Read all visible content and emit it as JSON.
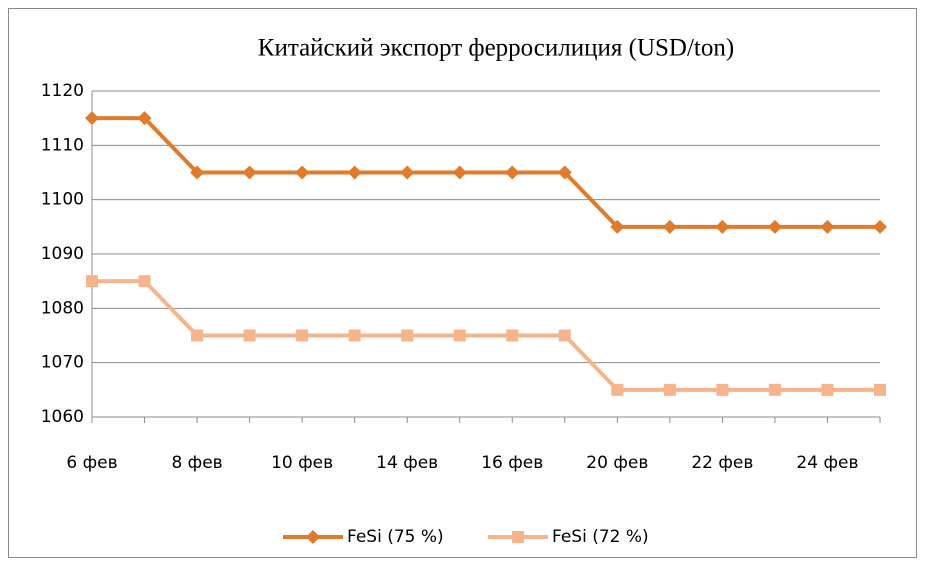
{
  "chart_data": {
    "type": "line",
    "title": "Китайский экспорт ферросилиция (USD/ton)",
    "categories": [
      "6 фев",
      null,
      "8 фев",
      null,
      "10 фев",
      null,
      "14 фев",
      null,
      "16 фев",
      null,
      "20 фев",
      null,
      "22 фев",
      null,
      "24 фев",
      null
    ],
    "series": [
      {
        "name": "FeSi (75 %)",
        "color": "#e07b2c",
        "marker": "diamond",
        "values": [
          1115,
          1115,
          1105,
          1105,
          1105,
          1105,
          1105,
          1105,
          1105,
          1105,
          1095,
          1095,
          1095,
          1095,
          1095,
          1095
        ]
      },
      {
        "name": "FeSi (72 %)",
        "color": "#f6b48c",
        "marker": "square",
        "values": [
          1085,
          1085,
          1075,
          1075,
          1075,
          1075,
          1075,
          1075,
          1075,
          1075,
          1065,
          1065,
          1065,
          1065,
          1065,
          1065
        ]
      }
    ],
    "ylim": [
      1060,
      1120
    ],
    "yticks": [
      1060,
      1070,
      1080,
      1090,
      1100,
      1110,
      1120
    ],
    "grid": true,
    "legend": "bottom"
  }
}
